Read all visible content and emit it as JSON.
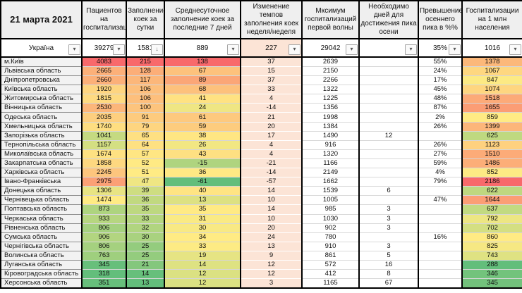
{
  "title_date": "21 марта 2021",
  "columns": [
    "Пациентов на госпитализации",
    "Заполнение коек за сутки",
    "Среднесуточное заполнение коек за последние 7 дней",
    "Изменение темпов заполнения коек неделя/неделя",
    "Мксимум госпитализаций первой волны",
    "Необходимо дней для достижения пика осени",
    "Превышение осеннего пика в %%",
    "Госпитализации на 1 млн населения"
  ],
  "summary_row": {
    "name": "Україна",
    "values": [
      "39279",
      "1581",
      "889",
      "227",
      "29042",
      "",
      "35%",
      "1016"
    ]
  },
  "rows": [
    {
      "name": "м.Київ",
      "values": [
        4083,
        215,
        138,
        37,
        2639,
        null,
        "55%",
        1378
      ]
    },
    {
      "name": "Львівська область",
      "values": [
        2665,
        128,
        67,
        15,
        2150,
        null,
        "24%",
        1067
      ]
    },
    {
      "name": "Дніпропетровська",
      "values": [
        2660,
        117,
        89,
        37,
        2266,
        null,
        "17%",
        847
      ]
    },
    {
      "name": "Київська область",
      "values": [
        1920,
        106,
        68,
        33,
        1322,
        null,
        "45%",
        1074
      ]
    },
    {
      "name": "Житомирська область",
      "values": [
        1815,
        106,
        41,
        4,
        1225,
        null,
        "48%",
        1518
      ]
    },
    {
      "name": "Вінницька область",
      "values": [
        2530,
        100,
        24,
        -14,
        1356,
        null,
        "87%",
        1655
      ]
    },
    {
      "name": "Одеська область",
      "values": [
        2035,
        91,
        61,
        21,
        1998,
        null,
        "2%",
        859
      ]
    },
    {
      "name": "Хмельницька область",
      "values": [
        1740,
        79,
        59,
        20,
        1384,
        null,
        "26%",
        1399
      ]
    },
    {
      "name": "Запорізька область",
      "values": [
        1041,
        65,
        38,
        17,
        1490,
        12,
        "",
        625
      ]
    },
    {
      "name": "Тернопільська область",
      "values": [
        1157,
        64,
        26,
        4,
        916,
        null,
        "26%",
        1123
      ]
    },
    {
      "name": "Миколаївська область",
      "values": [
        1674,
        57,
        43,
        4,
        1320,
        null,
        "27%",
        1510
      ]
    },
    {
      "name": "Закарпатська область",
      "values": [
        1858,
        52,
        -15,
        -21,
        1166,
        null,
        "59%",
        1486
      ]
    },
    {
      "name": "Харківська область",
      "values": [
        2245,
        51,
        36,
        -14,
        2149,
        null,
        "4%",
        852
      ]
    },
    {
      "name": "Івано-Франківська",
      "values": [
        2975,
        47,
        -61,
        -57,
        1662,
        null,
        "79%",
        2186
      ]
    },
    {
      "name": "Донецька область",
      "values": [
        1306,
        39,
        40,
        14,
        1539,
        6,
        "",
        622
      ]
    },
    {
      "name": "Чернівецька область",
      "values": [
        1474,
        36,
        13,
        10,
        1005,
        null,
        "47%",
        1644
      ]
    },
    {
      "name": "Полтавська область",
      "values": [
        873,
        35,
        35,
        14,
        985,
        3,
        "",
        637
      ]
    },
    {
      "name": "Черкаська область",
      "values": [
        933,
        33,
        31,
        10,
        1030,
        3,
        "",
        792
      ]
    },
    {
      "name": "Рівненська область",
      "values": [
        806,
        32,
        30,
        20,
        902,
        3,
        "",
        702
      ]
    },
    {
      "name": "Сумська область",
      "values": [
        906,
        30,
        34,
        24,
        780,
        null,
        "16%",
        860
      ]
    },
    {
      "name": "Чернігівська область",
      "values": [
        806,
        25,
        33,
        13,
        910,
        3,
        "",
        825
      ]
    },
    {
      "name": "Волинська область",
      "values": [
        763,
        25,
        19,
        9,
        861,
        5,
        "",
        743
      ]
    },
    {
      "name": "Луганська область",
      "values": [
        345,
        21,
        14,
        12,
        572,
        16,
        "",
        288
      ]
    },
    {
      "name": "Кіровоградська область",
      "values": [
        318,
        14,
        12,
        12,
        412,
        8,
        "",
        346
      ]
    },
    {
      "name": "Херсонська область",
      "values": [
        351,
        13,
        12,
        3,
        1165,
        67,
        "",
        345
      ]
    }
  ],
  "colors": {
    "scale_high": "#F8696B",
    "scale_mid": "#FFEB84",
    "scale_low": "#63BE7B",
    "change_column_fill": "#FCE4D6",
    "header_fill": "#EFEFEF",
    "region_name_fill": "#F2F2F2",
    "grid_border": "#000000"
  },
  "icons": {
    "filter_dropdown": "▾",
    "filter_sorted_desc": "↓"
  }
}
